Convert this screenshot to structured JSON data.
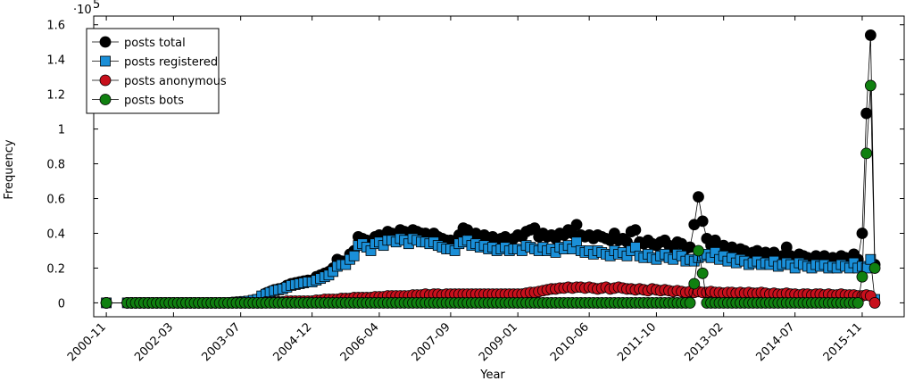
{
  "chart_data": {
    "type": "line",
    "y_label": "Frequency",
    "x_label": "Year",
    "y_multiplier_base": "·10",
    "y_multiplier_exponent": "5",
    "legend": "upper left",
    "xlim": [
      "2000-08",
      "2016-09"
    ],
    "xticks": [
      "2000-11",
      "2002-03",
      "2003-07",
      "2004-12",
      "2006-04",
      "2007-09",
      "2009-01",
      "2010-06",
      "2011-10",
      "2013-02",
      "2014-07",
      "2015-11"
    ],
    "ylim": [
      -0.08,
      1.65
    ],
    "yticks": [
      0,
      0.2,
      0.4,
      0.6,
      0.8,
      1,
      1.2,
      1.4,
      1.6
    ],
    "x": [
      "2000-11",
      "2001-04",
      "2001-05",
      "2001-06",
      "2001-07",
      "2001-08",
      "2001-09",
      "2001-10",
      "2001-11",
      "2001-12",
      "2002-01",
      "2002-02",
      "2002-03",
      "2002-04",
      "2002-05",
      "2002-06",
      "2002-07",
      "2002-08",
      "2002-09",
      "2002-10",
      "2002-11",
      "2002-12",
      "2003-01",
      "2003-02",
      "2003-03",
      "2003-04",
      "2003-05",
      "2003-06",
      "2003-07",
      "2003-08",
      "2003-09",
      "2003-10",
      "2003-11",
      "2003-12",
      "2004-01",
      "2004-02",
      "2004-03",
      "2004-04",
      "2004-05",
      "2004-06",
      "2004-07",
      "2004-08",
      "2004-09",
      "2004-10",
      "2004-11",
      "2004-12",
      "2005-01",
      "2005-02",
      "2005-03",
      "2005-04",
      "2005-05",
      "2005-06",
      "2005-07",
      "2005-08",
      "2005-09",
      "2005-10",
      "2005-11",
      "2005-12",
      "2006-01",
      "2006-02",
      "2006-03",
      "2006-04",
      "2006-05",
      "2006-06",
      "2006-07",
      "2006-08",
      "2006-09",
      "2006-10",
      "2006-11",
      "2006-12",
      "2007-01",
      "2007-02",
      "2007-03",
      "2007-04",
      "2007-05",
      "2007-06",
      "2007-07",
      "2007-08",
      "2007-09",
      "2007-10",
      "2007-11",
      "2007-12",
      "2008-01",
      "2008-02",
      "2008-03",
      "2008-04",
      "2008-05",
      "2008-06",
      "2008-07",
      "2008-08",
      "2008-09",
      "2008-10",
      "2008-11",
      "2008-12",
      "2009-01",
      "2009-02",
      "2009-03",
      "2009-04",
      "2009-05",
      "2009-06",
      "2009-07",
      "2009-08",
      "2009-09",
      "2009-10",
      "2009-11",
      "2009-12",
      "2010-01",
      "2010-02",
      "2010-03",
      "2010-04",
      "2010-05",
      "2010-06",
      "2010-07",
      "2010-08",
      "2010-09",
      "2010-10",
      "2010-11",
      "2010-12",
      "2011-01",
      "2011-02",
      "2011-03",
      "2011-04",
      "2011-05",
      "2011-06",
      "2011-07",
      "2011-08",
      "2011-09",
      "2011-10",
      "2011-11",
      "2011-12",
      "2012-01",
      "2012-02",
      "2012-03",
      "2012-04",
      "2012-05",
      "2012-06",
      "2012-07",
      "2012-08",
      "2012-09",
      "2012-10",
      "2012-11",
      "2012-12",
      "2013-01",
      "2013-02",
      "2013-03",
      "2013-04",
      "2013-05",
      "2013-06",
      "2013-07",
      "2013-08",
      "2013-09",
      "2013-10",
      "2013-11",
      "2013-12",
      "2014-01",
      "2014-02",
      "2014-03",
      "2014-04",
      "2014-05",
      "2014-06",
      "2014-07",
      "2014-08",
      "2014-09",
      "2014-10",
      "2014-11",
      "2014-12",
      "2015-01",
      "2015-02",
      "2015-03",
      "2015-04",
      "2015-05",
      "2015-06",
      "2015-07",
      "2015-08",
      "2015-09",
      "2015-10",
      "2015-11",
      "2015-12",
      "2016-01",
      "2016-02"
    ],
    "series": [
      {
        "name": "posts total",
        "color": "#000000",
        "marker": "circle",
        "values": [
          0,
          0,
          0,
          0,
          0,
          0,
          0,
          0,
          0,
          0,
          0,
          0,
          0,
          0,
          0,
          0,
          0,
          0,
          0,
          0,
          0,
          0,
          0,
          0,
          0,
          0,
          0.002,
          0.004,
          0.006,
          0.008,
          0.01,
          0.015,
          0.02,
          0.04,
          0.055,
          0.065,
          0.075,
          0.08,
          0.085,
          0.1,
          0.11,
          0.115,
          0.12,
          0.125,
          0.13,
          0.13,
          0.15,
          0.16,
          0.17,
          0.18,
          0.2,
          0.25,
          0.24,
          0.24,
          0.28,
          0.3,
          0.38,
          0.37,
          0.36,
          0.34,
          0.38,
          0.39,
          0.37,
          0.41,
          0.4,
          0.39,
          0.42,
          0.41,
          0.38,
          0.42,
          0.41,
          0.4,
          0.4,
          0.39,
          0.4,
          0.38,
          0.37,
          0.36,
          0.36,
          0.35,
          0.39,
          0.43,
          0.42,
          0.39,
          0.4,
          0.38,
          0.39,
          0.37,
          0.38,
          0.36,
          0.37,
          0.38,
          0.36,
          0.37,
          0.39,
          0.38,
          0.41,
          0.42,
          0.43,
          0.38,
          0.4,
          0.38,
          0.39,
          0.37,
          0.4,
          0.39,
          0.42,
          0.4,
          0.45,
          0.39,
          0.38,
          0.39,
          0.37,
          0.39,
          0.38,
          0.37,
          0.36,
          0.4,
          0.36,
          0.37,
          0.35,
          0.41,
          0.42,
          0.35,
          0.34,
          0.36,
          0.34,
          0.33,
          0.35,
          0.36,
          0.33,
          0.32,
          0.35,
          0.34,
          0.31,
          0.32,
          0.45,
          0.61,
          0.47,
          0.37,
          0.33,
          0.36,
          0.31,
          0.33,
          0.3,
          0.32,
          0.29,
          0.31,
          0.3,
          0.28,
          0.29,
          0.3,
          0.28,
          0.29,
          0.27,
          0.29,
          0.26,
          0.27,
          0.32,
          0.27,
          0.25,
          0.28,
          0.27,
          0.26,
          0.25,
          0.27,
          0.26,
          0.27,
          0.25,
          0.26,
          0.25,
          0.27,
          0.26,
          0.25,
          0.28,
          0.25,
          0.4,
          1.09,
          1.54,
          0.22
        ]
      },
      {
        "name": "posts registered",
        "color": "#1a8fd8",
        "marker": "square",
        "values": [
          0,
          0,
          0,
          0,
          0,
          0,
          0,
          0,
          0,
          0,
          0,
          0,
          0,
          0,
          0,
          0,
          0,
          0,
          0,
          0,
          0,
          0,
          0,
          0,
          0,
          0,
          0.002,
          0.004,
          0.006,
          0.008,
          0.01,
          0.015,
          0.02,
          0.04,
          0.05,
          0.06,
          0.07,
          0.075,
          0.08,
          0.09,
          0.1,
          0.105,
          0.11,
          0.115,
          0.12,
          0.12,
          0.13,
          0.14,
          0.15,
          0.16,
          0.18,
          0.21,
          0.22,
          0.22,
          0.25,
          0.27,
          0.33,
          0.34,
          0.32,
          0.3,
          0.34,
          0.35,
          0.33,
          0.36,
          0.36,
          0.35,
          0.37,
          0.36,
          0.34,
          0.37,
          0.36,
          0.35,
          0.35,
          0.34,
          0.35,
          0.33,
          0.32,
          0.31,
          0.31,
          0.3,
          0.34,
          0.35,
          0.36,
          0.33,
          0.34,
          0.32,
          0.33,
          0.31,
          0.32,
          0.3,
          0.31,
          0.32,
          0.3,
          0.31,
          0.31,
          0.3,
          0.33,
          0.32,
          0.31,
          0.3,
          0.32,
          0.3,
          0.31,
          0.29,
          0.32,
          0.31,
          0.33,
          0.31,
          0.35,
          0.3,
          0.29,
          0.3,
          0.28,
          0.3,
          0.29,
          0.28,
          0.27,
          0.3,
          0.28,
          0.29,
          0.27,
          0.3,
          0.32,
          0.27,
          0.26,
          0.28,
          0.26,
          0.25,
          0.27,
          0.28,
          0.26,
          0.25,
          0.28,
          0.27,
          0.24,
          0.25,
          0.24,
          0.26,
          0.27,
          0.28,
          0.26,
          0.29,
          0.25,
          0.27,
          0.24,
          0.26,
          0.23,
          0.25,
          0.24,
          0.22,
          0.23,
          0.24,
          0.22,
          0.23,
          0.22,
          0.24,
          0.21,
          0.22,
          0.23,
          0.22,
          0.2,
          0.23,
          0.22,
          0.21,
          0.2,
          0.22,
          0.21,
          0.22,
          0.2,
          0.21,
          0.2,
          0.22,
          0.21,
          0.2,
          0.23,
          0.2,
          0.21,
          0.2,
          0.25,
          0.02
        ]
      },
      {
        "name": "posts anonymous",
        "color": "#c8101c",
        "marker": "circle",
        "values": [
          0,
          0,
          0,
          0,
          0,
          0,
          0,
          0,
          0,
          0,
          0,
          0,
          0,
          0,
          0,
          0,
          0,
          0,
          0,
          0,
          0,
          0,
          0,
          0,
          0,
          0,
          0,
          0,
          0,
          0,
          0,
          0,
          0,
          0,
          0.005,
          0.005,
          0.005,
          0.005,
          0.005,
          0.01,
          0.01,
          0.01,
          0.01,
          0.01,
          0.01,
          0.01,
          0.015,
          0.015,
          0.02,
          0.02,
          0.02,
          0.02,
          0.025,
          0.025,
          0.025,
          0.03,
          0.03,
          0.03,
          0.03,
          0.03,
          0.035,
          0.035,
          0.035,
          0.04,
          0.04,
          0.04,
          0.04,
          0.04,
          0.04,
          0.045,
          0.045,
          0.045,
          0.05,
          0.045,
          0.05,
          0.05,
          0.045,
          0.05,
          0.05,
          0.05,
          0.05,
          0.05,
          0.05,
          0.05,
          0.05,
          0.05,
          0.05,
          0.05,
          0.05,
          0.05,
          0.05,
          0.05,
          0.05,
          0.05,
          0.05,
          0.05,
          0.055,
          0.06,
          0.06,
          0.065,
          0.07,
          0.075,
          0.08,
          0.08,
          0.085,
          0.085,
          0.09,
          0.085,
          0.09,
          0.09,
          0.085,
          0.09,
          0.085,
          0.08,
          0.085,
          0.09,
          0.08,
          0.085,
          0.09,
          0.085,
          0.08,
          0.08,
          0.075,
          0.08,
          0.075,
          0.07,
          0.08,
          0.075,
          0.07,
          0.075,
          0.07,
          0.065,
          0.07,
          0.065,
          0.06,
          0.065,
          0.06,
          0.065,
          0.06,
          0.06,
          0.065,
          0.06,
          0.06,
          0.055,
          0.06,
          0.06,
          0.055,
          0.06,
          0.055,
          0.06,
          0.055,
          0.055,
          0.06,
          0.055,
          0.05,
          0.055,
          0.05,
          0.05,
          0.055,
          0.05,
          0.05,
          0.045,
          0.05,
          0.05,
          0.045,
          0.05,
          0.05,
          0.045,
          0.05,
          0.045,
          0.045,
          0.05,
          0.045,
          0.045,
          0.045,
          0.04,
          0.04,
          0.045,
          0.04,
          0
        ]
      },
      {
        "name": "posts bots",
        "color": "#108010",
        "marker": "circle",
        "values": [
          0,
          0,
          0,
          0,
          0,
          0,
          0,
          0,
          0,
          0,
          0,
          0,
          0,
          0,
          0,
          0,
          0,
          0,
          0,
          0,
          0,
          0,
          0,
          0,
          0,
          0,
          0,
          0,
          0,
          0,
          0,
          0,
          0,
          0,
          0,
          0,
          0,
          0,
          0,
          0,
          0,
          0,
          0,
          0,
          0,
          0,
          0,
          0,
          0,
          0,
          0,
          0,
          0,
          0,
          0,
          0,
          0,
          0,
          0,
          0,
          0,
          0,
          0,
          0,
          0,
          0,
          0,
          0,
          0,
          0,
          0,
          0,
          0,
          0,
          0,
          0,
          0,
          0,
          0,
          0,
          0,
          0,
          0,
          0,
          0,
          0,
          0,
          0,
          0,
          0,
          0,
          0,
          0,
          0,
          0,
          0,
          0,
          0,
          0,
          0,
          0,
          0,
          0,
          0,
          0,
          0,
          0,
          0,
          0,
          0,
          0,
          0,
          0,
          0,
          0,
          0,
          0,
          0,
          0,
          0,
          0,
          0,
          0,
          0,
          0,
          0,
          0,
          0,
          0,
          0,
          0,
          0,
          0,
          0,
          0,
          0,
          0.11,
          0.3,
          0.17,
          0,
          0,
          0,
          0,
          0,
          0,
          0,
          0,
          0,
          0,
          0,
          0,
          0,
          0,
          0,
          0,
          0,
          0,
          0,
          0,
          0,
          0,
          0,
          0,
          0,
          0,
          0,
          0,
          0,
          0,
          0,
          0,
          0,
          0,
          0,
          0,
          0,
          0.15,
          0.86,
          1.25,
          0.2
        ]
      }
    ]
  }
}
